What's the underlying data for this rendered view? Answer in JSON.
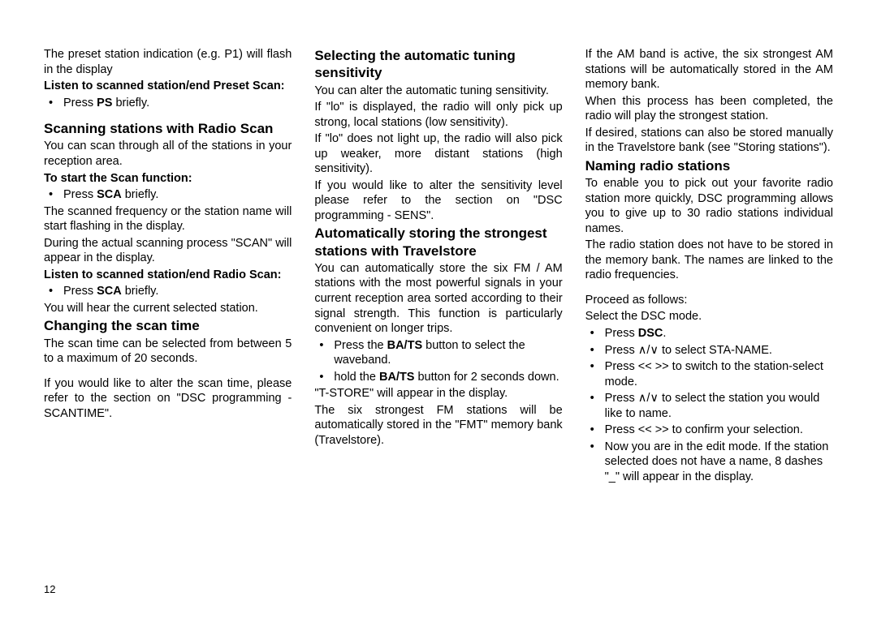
{
  "page_number": "12",
  "col1": {
    "intro": "The preset station indication (e.g. P1) will flash in the display",
    "sub1": "Listen to scanned station/end Preset Scan:",
    "li1": "Press <b>PS</b> briefly.",
    "h1": "Scanning stations with Radio Scan",
    "p1": "You can scan through all of the stations in your reception area.",
    "sub2": "To start the Scan function:",
    "li2": "Press <b>SCA</b> briefly.",
    "p2": "The scanned frequency or the station name will start flashing in the display.",
    "p3": "During the actual scanning process \"SCAN\" will appear in the display.",
    "sub3": "Listen to scanned station/end Radio Scan:",
    "li3": "Press <b>SCA</b> briefly.",
    "p4": "You will hear the current selected station.",
    "h2": "Changing the scan time",
    "p5": "The scan time can be selected from between 5 to a maximum of 20 seconds.",
    "p6": "If you would like to alter the scan time, please refer to the section on \"DSC programming - SCANTIME\"."
  },
  "col2": {
    "h1": "Selecting the automatic tuning sensitivity",
    "p1": "You can alter the automatic tuning sensitivity.",
    "p2": "If \"lo\" is displayed, the radio will only pick up strong, local stations (low sensitivity).",
    "p3": "If \"lo\" does not light up, the radio will also pick up weaker, more distant stations (high sensitivity).",
    "p4": "If you would like to alter the sensitivity level please refer to the section on \"DSC programming - SENS\".",
    "h2": "Automatically storing the strongest stations with Travelstore",
    "p5": "You can automatically store the six FM / AM stations with the most powerful signals in your current reception area sorted according to their signal strength. This function is particularly convenient on longer trips.",
    "li1": "Press the <b>BA/TS</b> button to select the waveband.",
    "li2": "hold the <b>BA/TS</b> button for 2 seconds down.",
    "p6": "\"T-STORE\" will appear in the display.",
    "p7": "The six strongest FM stations will be automatically stored in the \"FMT\" memory bank (Travelstore)."
  },
  "col3": {
    "p1": "If the AM band is active, the six strongest AM stations will be automatically stored in the AM memory bank.",
    "p2": "When this process has been completed, the radio will play the strongest station.",
    "p3": "If desired, stations can also be stored manually in the Travelstore bank (see \"Storing stations\").",
    "h1": "Naming radio stations",
    "p4": "To enable you to pick out your favorite radio station more quickly, DSC programming allows you to give up to 30 radio stations individual names.",
    "p5": "The radio station does not have to be stored in the memory bank. The names are linked to the radio frequencies.",
    "p6": "Proceed as follows:",
    "p7": "Select the DSC mode.",
    "li1": "Press <b>DSC</b>.",
    "li2": "Press ∧/∨ to select STA-NAME.",
    "li3": "Press << >> to switch to the station-select mode.",
    "li4": "Press ∧/∨ to select the station you would like to name.",
    "li5": "Press << >> to confirm your selection.",
    "li6": "Now you are in the edit mode. If the station selected does not have a name, 8 dashes \"_\" will appear in the display."
  }
}
